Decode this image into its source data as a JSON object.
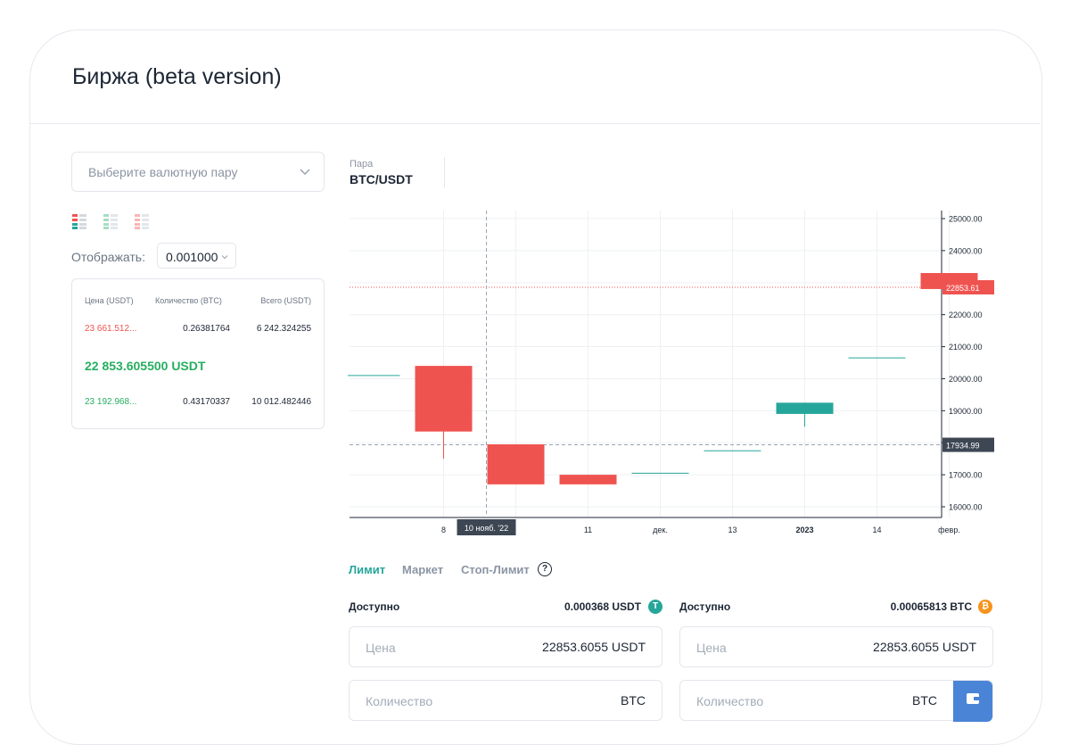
{
  "header": {
    "title": "Биржа (beta version)"
  },
  "pair_select": {
    "placeholder": "Выберите валютную пару",
    "chevron_icon": "chevron-down-icon"
  },
  "view_modes": [
    "both-sides-view-icon",
    "bids-view-icon",
    "asks-view-icon"
  ],
  "display": {
    "label": "Отображать:",
    "value": "0.001000"
  },
  "orderbook": {
    "headers": {
      "price": "Цена (USDT)",
      "qty": "Количество (BTC)",
      "total": "Всего (USDT)"
    },
    "ask": {
      "price": "23 661.512...",
      "qty": "0.26381764",
      "total": "6 242.324255"
    },
    "mid_price": "22 853.605500 USDT",
    "bid": {
      "price": "23 192.968...",
      "qty": "0.43170337",
      "total": "10 012.482446"
    }
  },
  "pair": {
    "label": "Пара",
    "value": "BTC/USDT"
  },
  "chart_data": {
    "type": "candlestick",
    "y_range": [
      15700,
      25250
    ],
    "y_ticks": [
      "16000.00",
      "17000.00",
      "18000.00",
      "19000.00",
      "20000.00",
      "21000.00",
      "22000.00",
      "23000.00",
      "24000.00",
      "25000.00"
    ],
    "x_ticks": [
      {
        "label": "8",
        "x": 0.5
      },
      {
        "label": "10 нояб. '22",
        "x": 1.5
      },
      {
        "label": "11",
        "x": 2.5
      },
      {
        "label": "дек.",
        "x": 3.5
      },
      {
        "label": "13",
        "x": 4.5
      },
      {
        "label": "2023",
        "x": 5.5
      },
      {
        "label": "14",
        "x": 6.5
      },
      {
        "label": "февр.",
        "x": 7.5
      }
    ],
    "candles": [
      {
        "x": -0.5,
        "open": 20100,
        "close": 20100,
        "high": 20100,
        "low": 20100
      },
      {
        "x": 0.5,
        "open": 20400,
        "close": 18350,
        "high": 20400,
        "low": 17500
      },
      {
        "x": 1.5,
        "open": 17950,
        "close": 16700,
        "high": 17950,
        "low": 16700
      },
      {
        "x": 2.5,
        "open": 17000,
        "close": 16700,
        "high": 17000,
        "low": 16700
      },
      {
        "x": 3.5,
        "open": 17050,
        "close": 17050,
        "high": 17050,
        "low": 17050
      },
      {
        "x": 4.5,
        "open": 17750,
        "close": 17750,
        "high": 17750,
        "low": 17750
      },
      {
        "x": 5.5,
        "open": 18900,
        "close": 19250,
        "high": 19250,
        "low": 18500
      },
      {
        "x": 6.5,
        "open": 20650,
        "close": 20650,
        "high": 20650,
        "low": 20650
      },
      {
        "x": 7.5,
        "open": 23300,
        "close": 22800,
        "high": 23300,
        "low": 22800
      }
    ],
    "last_price": {
      "value": 22853.61,
      "label": "22853.61"
    },
    "crosshair": {
      "value": 17934.99,
      "label": "17934.99",
      "x_label": "10 нояб. '22"
    },
    "colors": {
      "up": "#26a69a",
      "down": "#ef5350"
    }
  },
  "order_tabs": [
    {
      "label": "Лимит",
      "color": "#26a69a"
    },
    {
      "label": "Маркет",
      "color": "#8b95a3"
    },
    {
      "label": "Стоп-Лимит",
      "color": "#8b95a3"
    }
  ],
  "help_icon": "?",
  "buy": {
    "available_label": "Доступно",
    "available_value": "0.000368  USDT",
    "coin_icon": "T",
    "coin_color": "#26a69a",
    "price_label": "Цена",
    "price_value": "22853.6055  USDT",
    "qty_label": "Количество",
    "qty_value": "BTC"
  },
  "sell": {
    "available_label": "Доступно",
    "available_value": "0.00065813  BTC",
    "coin_icon": "₿",
    "coin_color": "#f7931a",
    "price_label": "Цена",
    "price_value": "22853.6055  USDT",
    "qty_label": "Количество",
    "qty_value": "BTC"
  }
}
